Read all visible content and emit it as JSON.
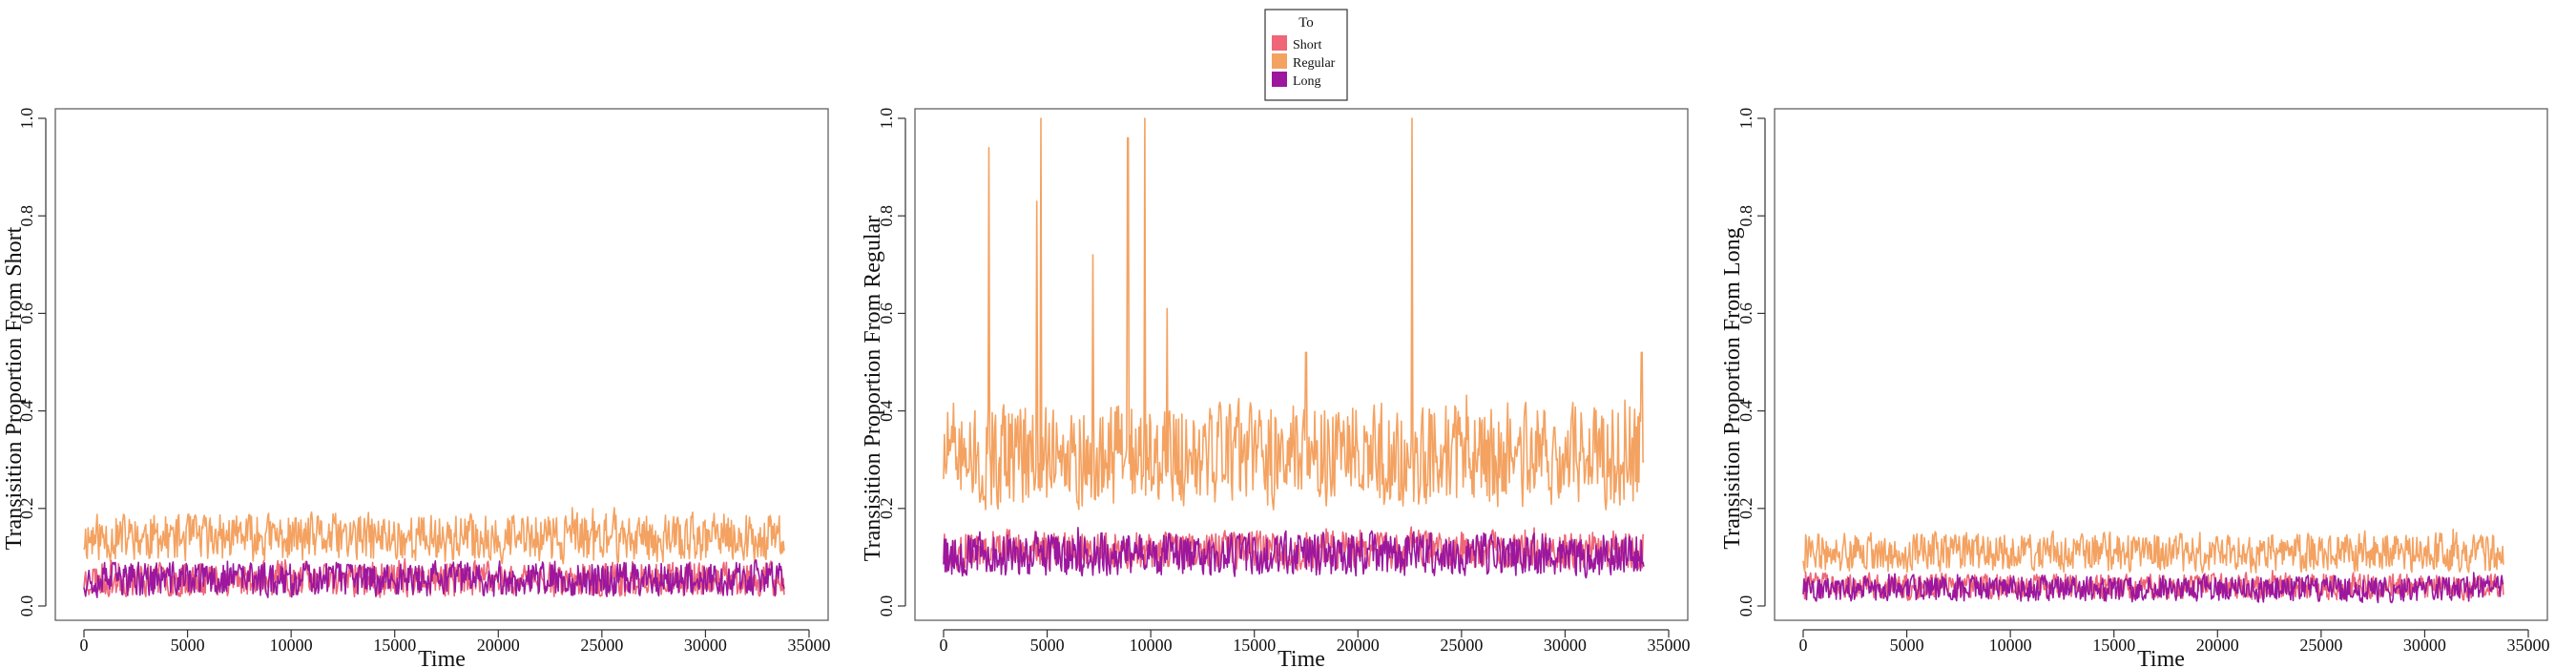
{
  "legend": {
    "title": "To",
    "items": [
      {
        "label": "Short",
        "color": "#EE6677"
      },
      {
        "label": "Regular",
        "color": "#F4A261"
      },
      {
        "label": "Long",
        "color": "#9C179E"
      }
    ]
  },
  "chart_data": [
    {
      "type": "line",
      "title": "",
      "xlabel": "Time",
      "ylabel": "Transisition Proportion From Short",
      "xlim": [
        0,
        35000
      ],
      "ylim": [
        0,
        1.0
      ],
      "xticks": [
        0,
        5000,
        10000,
        15000,
        20000,
        25000,
        30000,
        35000
      ],
      "yticks": [
        0.0,
        0.2,
        0.4,
        0.6,
        0.8,
        1.0
      ],
      "grid": false,
      "series": [
        {
          "name": "Regular",
          "color": "#F4A261",
          "mean": 0.14,
          "amp": 0.055,
          "min": 0.03,
          "max": 0.23,
          "seed": 11,
          "spikes": []
        },
        {
          "name": "Short",
          "color": "#EE6677",
          "mean": 0.055,
          "amp": 0.04,
          "min": 0.0,
          "max": 0.15,
          "seed": 23,
          "spikes": []
        },
        {
          "name": "Long",
          "color": "#9C179E",
          "mean": 0.055,
          "amp": 0.04,
          "min": 0.0,
          "max": 0.15,
          "seed": 37,
          "spikes": []
        }
      ]
    },
    {
      "type": "line",
      "title": "",
      "xlabel": "Time",
      "ylabel": "Transisition Proportion From Regular",
      "xlim": [
        0,
        35000
      ],
      "ylim": [
        0,
        1.0
      ],
      "xticks": [
        0,
        5000,
        10000,
        15000,
        20000,
        25000,
        30000,
        35000
      ],
      "yticks": [
        0.0,
        0.2,
        0.4,
        0.6,
        0.8,
        1.0
      ],
      "grid": false,
      "series": [
        {
          "name": "Regular",
          "color": "#F4A261",
          "mean": 0.31,
          "amp": 0.12,
          "min": 0.12,
          "max": 0.6,
          "seed": 51,
          "spikes": [
            [
              2200,
              0.94
            ],
            [
              4500,
              0.83
            ],
            [
              4700,
              1.0
            ],
            [
              7200,
              0.72
            ],
            [
              8900,
              0.96
            ],
            [
              9700,
              1.0
            ],
            [
              10800,
              0.61
            ],
            [
              22600,
              1.0
            ],
            [
              17500,
              0.52
            ],
            [
              33700,
              0.52
            ]
          ]
        },
        {
          "name": "Short",
          "color": "#EE6677",
          "mean": 0.115,
          "amp": 0.045,
          "min": 0.03,
          "max": 0.2,
          "seed": 63,
          "spikes": []
        },
        {
          "name": "Long",
          "color": "#9C179E",
          "mean": 0.105,
          "amp": 0.05,
          "min": 0.0,
          "max": 0.21,
          "seed": 79,
          "spikes": []
        }
      ]
    },
    {
      "type": "line",
      "title": "",
      "xlabel": "Time",
      "ylabel": "Transisition Proportion From Long",
      "xlim": [
        0,
        35000
      ],
      "ylim": [
        0,
        1.0
      ],
      "xticks": [
        0,
        5000,
        10000,
        15000,
        20000,
        25000,
        30000,
        35000
      ],
      "yticks": [
        0.0,
        0.2,
        0.4,
        0.6,
        0.8,
        1.0
      ],
      "grid": false,
      "series": [
        {
          "name": "Regular",
          "color": "#F4A261",
          "mean": 0.11,
          "amp": 0.045,
          "min": 0.02,
          "max": 0.19,
          "seed": 91,
          "spikes": []
        },
        {
          "name": "Short",
          "color": "#EE6677",
          "mean": 0.04,
          "amp": 0.03,
          "min": 0.0,
          "max": 0.1,
          "seed": 103,
          "spikes": []
        },
        {
          "name": "Long",
          "color": "#9C179E",
          "mean": 0.035,
          "amp": 0.03,
          "min": 0.0,
          "max": 0.1,
          "seed": 117,
          "spikes": []
        }
      ]
    }
  ],
  "time_range": {
    "start": 0,
    "end": 33800,
    "points": 850
  }
}
